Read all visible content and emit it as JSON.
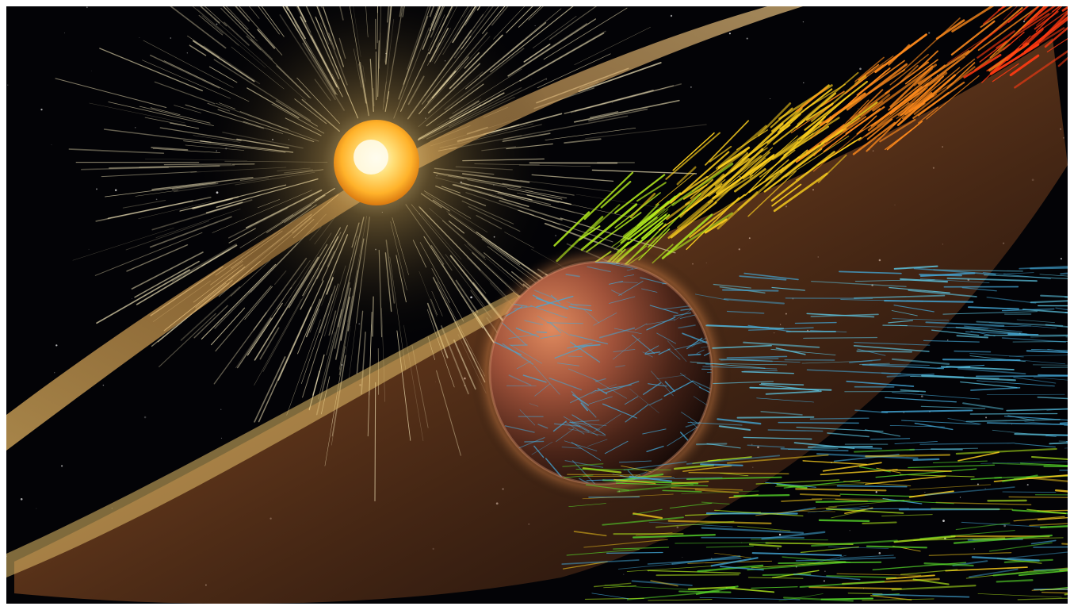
{
  "scene": {
    "subject": "sun-and-planet-solar-wind-illustration",
    "colors": {
      "space": "#030306",
      "sun_core": "#fff4c8",
      "sun_mid": "#ffc23a",
      "sun_edge": "#d9780f",
      "sun_rays": "#fff2c4",
      "band_gold": "#e7b45a",
      "band_copper": "#b5662e",
      "planet_light": "#c9704a",
      "planet_dark": "#2a140e",
      "stream_red": "#ff3a12",
      "stream_orange": "#ff8a1c",
      "stream_yellow": "#ffd21e",
      "stream_lime": "#b6f01e",
      "stream_green": "#57d92a",
      "stream_blue": "#43a9d9",
      "stream_cyan": "#5ec9e6"
    },
    "elements": [
      "starfield",
      "sun",
      "sun-rays",
      "solar-flare-bands",
      "planet",
      "atmosphere-halo",
      "upper-particle-streams",
      "planet-blue-streams",
      "lower-particle-streams"
    ]
  }
}
